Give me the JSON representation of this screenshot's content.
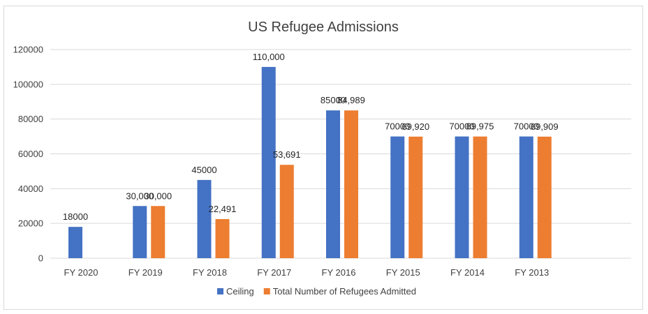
{
  "chart_data": {
    "type": "bar",
    "title": "US Refugee Admissions",
    "xlabel": "",
    "ylabel": "",
    "ylim": [
      0,
      120000
    ],
    "yticks": [
      "0",
      "20000",
      "40000",
      "60000",
      "80000",
      "100000",
      "120000"
    ],
    "categories": [
      "FY 2020",
      "FY 2019",
      "FY 2018",
      "FY 2017",
      "FY 2016",
      "FY 2015",
      "FY 2014",
      "FY 2013"
    ],
    "series": [
      {
        "name": "Ceiling",
        "color": "#4472c4",
        "values": [
          18000,
          30000,
          45000,
          110000,
          85000,
          70000,
          70000,
          70000
        ],
        "labels": [
          "18000",
          "30,000",
          "45000",
          "110,000",
          "85000",
          "70000",
          "70000",
          "70000"
        ]
      },
      {
        "name": "Total Number of Refugees Admitted",
        "color": "#ed7d31",
        "values": [
          null,
          30000,
          22491,
          53691,
          84989,
          69920,
          69975,
          69909
        ],
        "labels": [
          "",
          "30,000",
          "22,491",
          "53,691",
          "84,989",
          "69,920",
          "69,975",
          "69,909"
        ]
      }
    ],
    "grid": true,
    "legend_position": "bottom"
  }
}
